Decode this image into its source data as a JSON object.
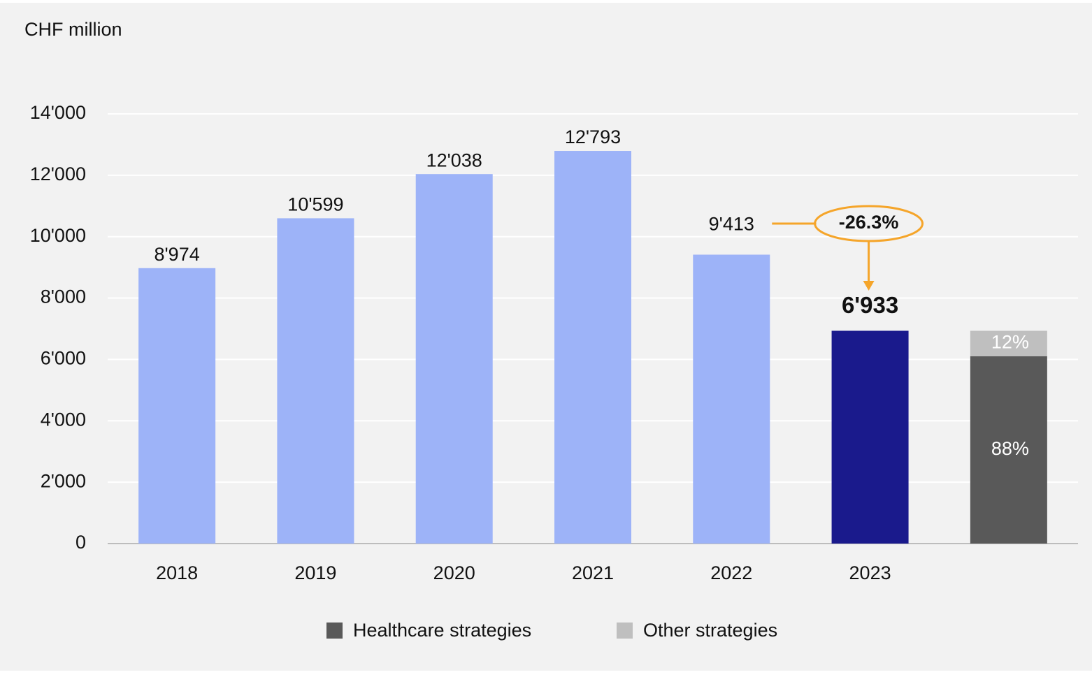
{
  "chart_data": {
    "type": "bar",
    "unit_label": "CHF million",
    "categories": [
      "2018",
      "2019",
      "2020",
      "2021",
      "2022",
      "2023",
      null
    ],
    "values": [
      8974,
      10599,
      12038,
      12793,
      9413,
      6933,
      null
    ],
    "value_labels": [
      "8'974",
      "10'599",
      "12'038",
      "12'793",
      "9'413",
      "6'933",
      null
    ],
    "colors": [
      "#9db3f8",
      "#9db3f8",
      "#9db3f8",
      "#9db3f8",
      "#9db3f8",
      "#1a1a8c",
      null
    ],
    "series": [
      {
        "name": "Healthcare strategies",
        "color": "#595959",
        "values": [
          null,
          null,
          null,
          null,
          null,
          null,
          6101
        ],
        "share": {
          "value": 88,
          "label": "88%"
        }
      },
      {
        "name": "Other strategies",
        "color": "#bfbfbf",
        "values": [
          null,
          null,
          null,
          null,
          null,
          null,
          832
        ],
        "share": {
          "value": 12,
          "label": "12%"
        }
      }
    ],
    "annotation": "-26.3%",
    "ylim": [
      0,
      14000
    ],
    "yticks": [
      0,
      {
        "value": 2000,
        "label": "2'000"
      },
      {
        "value": 4000,
        "label": "4'000"
      },
      {
        "value": 6000,
        "label": "6'000"
      },
      {
        "value": 8000,
        "label": "8'000"
      },
      {
        "value": 10000,
        "label": "10'000"
      },
      {
        "value": 12000,
        "label": "12'000"
      },
      {
        "value": 14000,
        "label": "14'000"
      }
    ],
    "grid": true
  }
}
